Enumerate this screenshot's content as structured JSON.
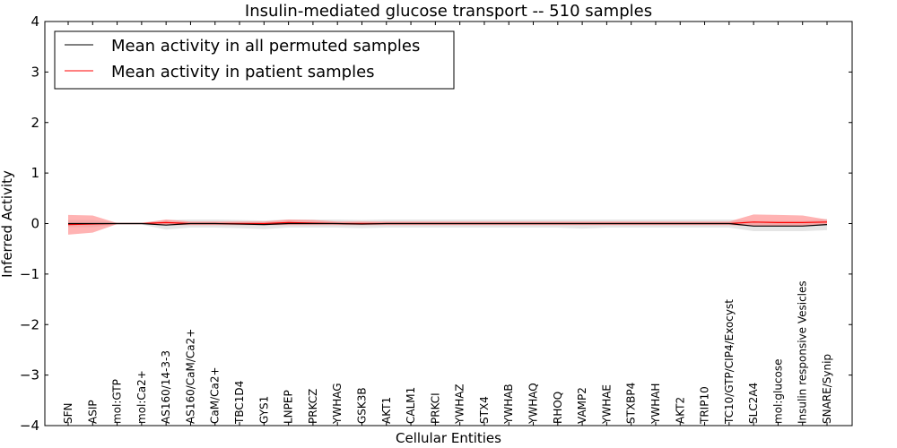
{
  "chart_data": {
    "type": "line",
    "title": "Insulin-mediated glucose transport -- 510 samples",
    "xlabel": "Cellular Entities",
    "ylabel": "Inferred Activity",
    "ylim": [
      -4,
      4
    ],
    "yticks": [
      4,
      3,
      2,
      1,
      0,
      -1,
      -2,
      -3,
      -4
    ],
    "ytick_labels": [
      "4",
      "3",
      "2",
      "1",
      "0",
      "−1",
      "−2",
      "−3",
      "−4"
    ],
    "categories": [
      "SFN",
      "ASIP",
      "mol:GTP",
      "mol:Ca2+",
      "AS160/14-3-3",
      "AS160/CaM/Ca2+",
      "CaM/Ca2+",
      "TBC1D4",
      "GYS1",
      "LNPEP",
      "PRKCZ",
      "YWHAG",
      "GSK3B",
      "AKT1",
      "CALM1",
      "PRKCI",
      "YWHAZ",
      "STX4",
      "YWHAB",
      "YWHAQ",
      "RHOQ",
      "VAMP2",
      "YWHAE",
      "STXBP4",
      "YWHAH",
      "AKT2",
      "TRIP10",
      "TC10/GTP/CIP4/Exocyst",
      "SLC2A4",
      "mol:glucose",
      "Insulin responsive Vesicles",
      "SNARE/Synip"
    ],
    "legend_position": "upper-left",
    "series": [
      {
        "name": "Mean activity in all permuted samples",
        "color": "#000000",
        "band_color": "#cccccc",
        "values": [
          0.0,
          0.0,
          0.0,
          0.0,
          -0.03,
          0.0,
          0.0,
          -0.01,
          -0.02,
          0.0,
          0.0,
          0.0,
          -0.01,
          0.0,
          0.0,
          0.0,
          0.0,
          0.0,
          0.0,
          0.0,
          0.0,
          0.0,
          0.0,
          0.0,
          0.0,
          0.0,
          0.0,
          0.0,
          -0.05,
          -0.05,
          -0.05,
          -0.02
        ],
        "lower": [
          -0.07,
          -0.07,
          -0.02,
          -0.02,
          -0.12,
          -0.08,
          -0.08,
          -0.09,
          -0.11,
          -0.08,
          -0.08,
          -0.08,
          -0.09,
          -0.08,
          -0.08,
          -0.08,
          -0.08,
          -0.08,
          -0.08,
          -0.08,
          -0.08,
          -0.1,
          -0.08,
          -0.08,
          -0.08,
          -0.08,
          -0.08,
          -0.08,
          -0.15,
          -0.15,
          -0.15,
          -0.13
        ],
        "upper": [
          0.07,
          0.07,
          0.02,
          0.02,
          0.07,
          0.08,
          0.08,
          0.07,
          0.06,
          0.08,
          0.08,
          0.08,
          0.07,
          0.08,
          0.08,
          0.08,
          0.08,
          0.08,
          0.08,
          0.08,
          0.08,
          0.08,
          0.08,
          0.08,
          0.08,
          0.08,
          0.08,
          0.08,
          0.05,
          0.05,
          0.05,
          0.09
        ]
      },
      {
        "name": "Mean activity in patient samples",
        "color": "#ff0000",
        "band_color": "#ff8080",
        "values": [
          -0.02,
          -0.01,
          0.0,
          0.0,
          0.02,
          0.0,
          0.0,
          0.0,
          0.0,
          0.02,
          0.01,
          0.0,
          0.0,
          0.0,
          0.0,
          0.0,
          0.0,
          0.0,
          0.0,
          0.0,
          0.0,
          0.0,
          0.0,
          0.0,
          0.0,
          0.0,
          0.0,
          0.0,
          0.03,
          0.02,
          0.02,
          0.03
        ],
        "lower": [
          -0.22,
          -0.18,
          -0.01,
          -0.01,
          -0.03,
          -0.03,
          -0.03,
          -0.03,
          -0.03,
          -0.03,
          -0.03,
          -0.03,
          -0.03,
          -0.03,
          -0.03,
          -0.03,
          -0.03,
          -0.03,
          -0.03,
          -0.03,
          -0.03,
          -0.03,
          -0.03,
          -0.03,
          -0.03,
          -0.03,
          -0.03,
          -0.03,
          -0.05,
          -0.05,
          -0.05,
          -0.02
        ],
        "upper": [
          0.17,
          0.16,
          0.01,
          0.01,
          0.08,
          0.04,
          0.04,
          0.04,
          0.04,
          0.08,
          0.07,
          0.04,
          0.04,
          0.04,
          0.04,
          0.04,
          0.04,
          0.04,
          0.04,
          0.04,
          0.04,
          0.04,
          0.04,
          0.04,
          0.04,
          0.04,
          0.04,
          0.04,
          0.18,
          0.17,
          0.16,
          0.08
        ]
      }
    ]
  }
}
